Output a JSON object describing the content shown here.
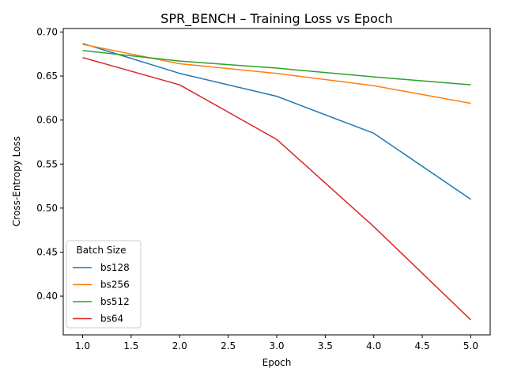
{
  "chart_data": {
    "type": "line",
    "title": "SPR_BENCH – Training Loss vs Epoch",
    "xlabel": "Epoch",
    "ylabel": "Cross-Entropy Loss",
    "x": [
      1,
      2,
      3,
      4,
      5
    ],
    "xlim": [
      0.8,
      5.2
    ],
    "ylim": [
      0.356,
      0.704
    ],
    "xticks": [
      "1.0",
      "1.5",
      "2.0",
      "2.5",
      "3.0",
      "3.5",
      "4.0",
      "4.5",
      "5.0"
    ],
    "yticks": [
      "0.40",
      "0.45",
      "0.50",
      "0.55",
      "0.60",
      "0.65",
      "0.70"
    ],
    "grid": false,
    "legend": {
      "title": "Batch Size",
      "position": "lower-left"
    },
    "series": [
      {
        "name": "bs128",
        "color": "#1f77b4",
        "values": [
          0.687,
          0.653,
          0.627,
          0.585,
          0.51
        ]
      },
      {
        "name": "bs256",
        "color": "#ff7f0e",
        "values": [
          0.686,
          0.664,
          0.653,
          0.639,
          0.619
        ]
      },
      {
        "name": "bs512",
        "color": "#2ca02c",
        "values": [
          0.679,
          0.667,
          0.659,
          0.649,
          0.64
        ]
      },
      {
        "name": "bs64",
        "color": "#d62728",
        "values": [
          0.671,
          0.64,
          0.578,
          0.479,
          0.373
        ]
      }
    ]
  }
}
